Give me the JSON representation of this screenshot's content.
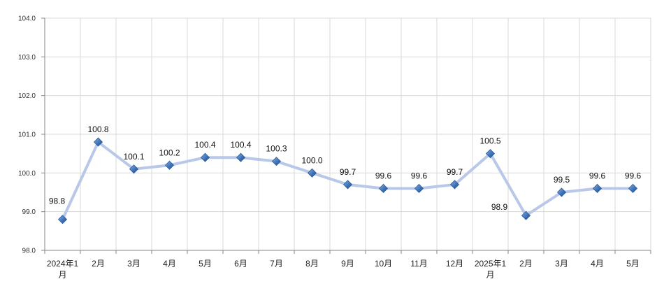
{
  "chart_data": {
    "type": "line",
    "title": "",
    "xlabel": "",
    "ylabel": "",
    "ylim": [
      98.0,
      104.0
    ],
    "yticks": [
      "98.0",
      "99.0",
      "100.0",
      "101.0",
      "102.0",
      "103.0",
      "104.0"
    ],
    "grid": true,
    "legend": "none",
    "categories": [
      [
        "2024年1",
        "月"
      ],
      [
        "2月"
      ],
      [
        "3月"
      ],
      [
        "4月"
      ],
      [
        "5月"
      ],
      [
        "6月"
      ],
      [
        "7月"
      ],
      [
        "8月"
      ],
      [
        "9月"
      ],
      [
        "10月"
      ],
      [
        "11月"
      ],
      [
        "12月"
      ],
      [
        "2025年1",
        "月"
      ],
      [
        "2月"
      ],
      [
        "3月"
      ],
      [
        "4月"
      ],
      [
        "5月"
      ]
    ],
    "series": [
      {
        "values": [
          98.8,
          100.8,
          100.1,
          100.2,
          100.4,
          100.4,
          100.3,
          100.0,
          99.7,
          99.6,
          99.6,
          99.7,
          100.5,
          98.9,
          99.5,
          99.6,
          99.6
        ],
        "labels": [
          "98.8",
          "100.8",
          "100.1",
          "100.2",
          "100.4",
          "100.4",
          "100.3",
          "100.0",
          "99.7",
          "99.6",
          "99.6",
          "99.7",
          "100.5",
          "98.9",
          "99.5",
          "99.6",
          "99.6"
        ],
        "line_color": "#b9c8e8",
        "marker_color": "#3f73b8"
      }
    ]
  }
}
